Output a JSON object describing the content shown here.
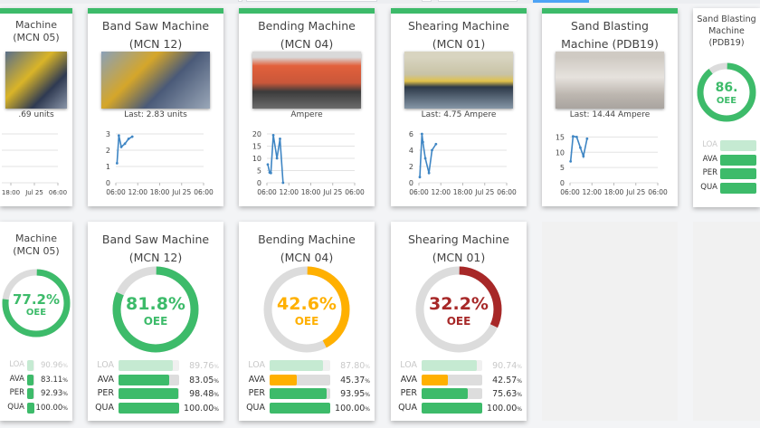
{
  "colors": {
    "green": "#3dbb6a",
    "orange": "#ffb000",
    "red": "#a72828",
    "ring_bg": "#dcdcdc",
    "loa": "#c5ead2",
    "line": "#3f86c4"
  },
  "chart_axis": {
    "x_ticks": [
      "06:00",
      "12:00",
      "18:00",
      "Jul 25",
      "06:00"
    ],
    "x_range_hours": [
      0,
      24
    ]
  },
  "trend_cards": [
    {
      "title": "Machine (MCN 05)",
      "last": ".69 units",
      "photo_icon": "machine-photo",
      "y_ticks": [],
      "points": []
    },
    {
      "title": "Band Saw Machine (MCN 12)",
      "last": "Last: 2.83 units",
      "photo_icon": "machine-photo",
      "y_ticks": [
        0,
        1,
        2,
        3
      ],
      "ylim": [
        0,
        3
      ],
      "points": [
        [
          "06:20",
          1.2
        ],
        [
          "06:50",
          2.9
        ],
        [
          "07:30",
          2.2
        ],
        [
          "08:30",
          2.4
        ],
        [
          "09:30",
          2.7
        ],
        [
          "10:30",
          2.83
        ]
      ]
    },
    {
      "title": "Bending Machine (MCN 04)",
      "last": "Ampere",
      "photo_icon": "machine-photo",
      "y_ticks": [
        0,
        5,
        10,
        15,
        20
      ],
      "ylim": [
        0,
        20
      ],
      "points": [
        [
          "06:15",
          7.5
        ],
        [
          "06:45",
          4.2
        ],
        [
          "07:05",
          4
        ],
        [
          "07:45",
          19.5
        ],
        [
          "08:45",
          10
        ],
        [
          "09:35",
          18
        ],
        [
          "10:25",
          0
        ]
      ]
    },
    {
      "title": "Shearing Machine (MCN 01)",
      "last": "Last: 4.75 Ampere",
      "photo_icon": "machine-photo",
      "y_ticks": [
        0,
        2,
        4,
        6
      ],
      "ylim": [
        0,
        6
      ],
      "points": [
        [
          "06:15",
          0.7
        ],
        [
          "06:50",
          6
        ],
        [
          "07:05",
          5
        ],
        [
          "07:45",
          3
        ],
        [
          "08:45",
          1.2
        ],
        [
          "09:35",
          4
        ],
        [
          "10:40",
          4.75
        ]
      ]
    },
    {
      "title": "Sand Blasting Machine (PDB19)",
      "last": "Last: 14.44 Ampere",
      "photo_icon": "machine-photo",
      "y_ticks": [
        0,
        5,
        10,
        15
      ],
      "ylim": [
        0,
        16
      ],
      "points": [
        [
          "06:10",
          7
        ],
        [
          "06:50",
          15.2
        ],
        [
          "07:50",
          15
        ],
        [
          "08:50",
          11.5
        ],
        [
          "09:40",
          8.7
        ],
        [
          "10:40",
          14.44
        ]
      ]
    }
  ],
  "oee_cards": [
    {
      "title": "Machine (MCN 05)",
      "oee": "77.2%",
      "oee_fraction": 0.772,
      "label": "OEE",
      "status": "green",
      "metrics": [
        {
          "name": "LOA",
          "value": "90.96",
          "pct": 90.96,
          "status": "loa"
        },
        {
          "name": "AVA",
          "value": "83.11",
          "pct": 83.11,
          "status": "green"
        },
        {
          "name": "PER",
          "value": "92.93",
          "pct": 92.93,
          "status": "green"
        },
        {
          "name": "QUA",
          "value": "100.00",
          "pct": 100,
          "status": "green"
        }
      ]
    },
    {
      "title": "Band Saw Machine (MCN 12)",
      "oee": "81.8%",
      "oee_fraction": 0.818,
      "label": "OEE",
      "status": "green",
      "metrics": [
        {
          "name": "LOA",
          "value": "89.76",
          "pct": 89.76,
          "status": "loa"
        },
        {
          "name": "AVA",
          "value": "83.05",
          "pct": 83.05,
          "status": "green"
        },
        {
          "name": "PER",
          "value": "98.48",
          "pct": 98.48,
          "status": "green"
        },
        {
          "name": "QUA",
          "value": "100.00",
          "pct": 100,
          "status": "green"
        }
      ]
    },
    {
      "title": "Bending Machine (MCN 04)",
      "oee": "42.6%",
      "oee_fraction": 0.426,
      "label": "OEE",
      "status": "orange",
      "metrics": [
        {
          "name": "LOA",
          "value": "87.80",
          "pct": 87.8,
          "status": "loa"
        },
        {
          "name": "AVA",
          "value": "45.37",
          "pct": 45.37,
          "status": "orange"
        },
        {
          "name": "PER",
          "value": "93.95",
          "pct": 93.95,
          "status": "green"
        },
        {
          "name": "QUA",
          "value": "100.00",
          "pct": 100,
          "status": "green"
        }
      ]
    },
    {
      "title": "Shearing Machine (MCN 01)",
      "oee": "32.2%",
      "oee_fraction": 0.322,
      "label": "OEE",
      "status": "red",
      "metrics": [
        {
          "name": "LOA",
          "value": "90.74",
          "pct": 90.74,
          "status": "loa"
        },
        {
          "name": "AVA",
          "value": "42.57",
          "pct": 42.57,
          "status": "orange"
        },
        {
          "name": "PER",
          "value": "75.63",
          "pct": 75.63,
          "status": "green"
        },
        {
          "name": "QUA",
          "value": "100.00",
          "pct": 100,
          "status": "green"
        }
      ]
    }
  ],
  "partial_oee_card": {
    "title": "Sand Blasting Machine (PDB19)",
    "oee": "86.",
    "oee_fraction": 0.9,
    "label": "OEE",
    "status": "green",
    "metrics": [
      {
        "name": "LOA",
        "pct": 100,
        "status": "loa"
      },
      {
        "name": "AVA",
        "pct": 100,
        "status": "green"
      },
      {
        "name": "PER",
        "pct": 100,
        "status": "green"
      },
      {
        "name": "QUA",
        "pct": 100,
        "status": "green"
      }
    ]
  },
  "unit_pct": "%"
}
